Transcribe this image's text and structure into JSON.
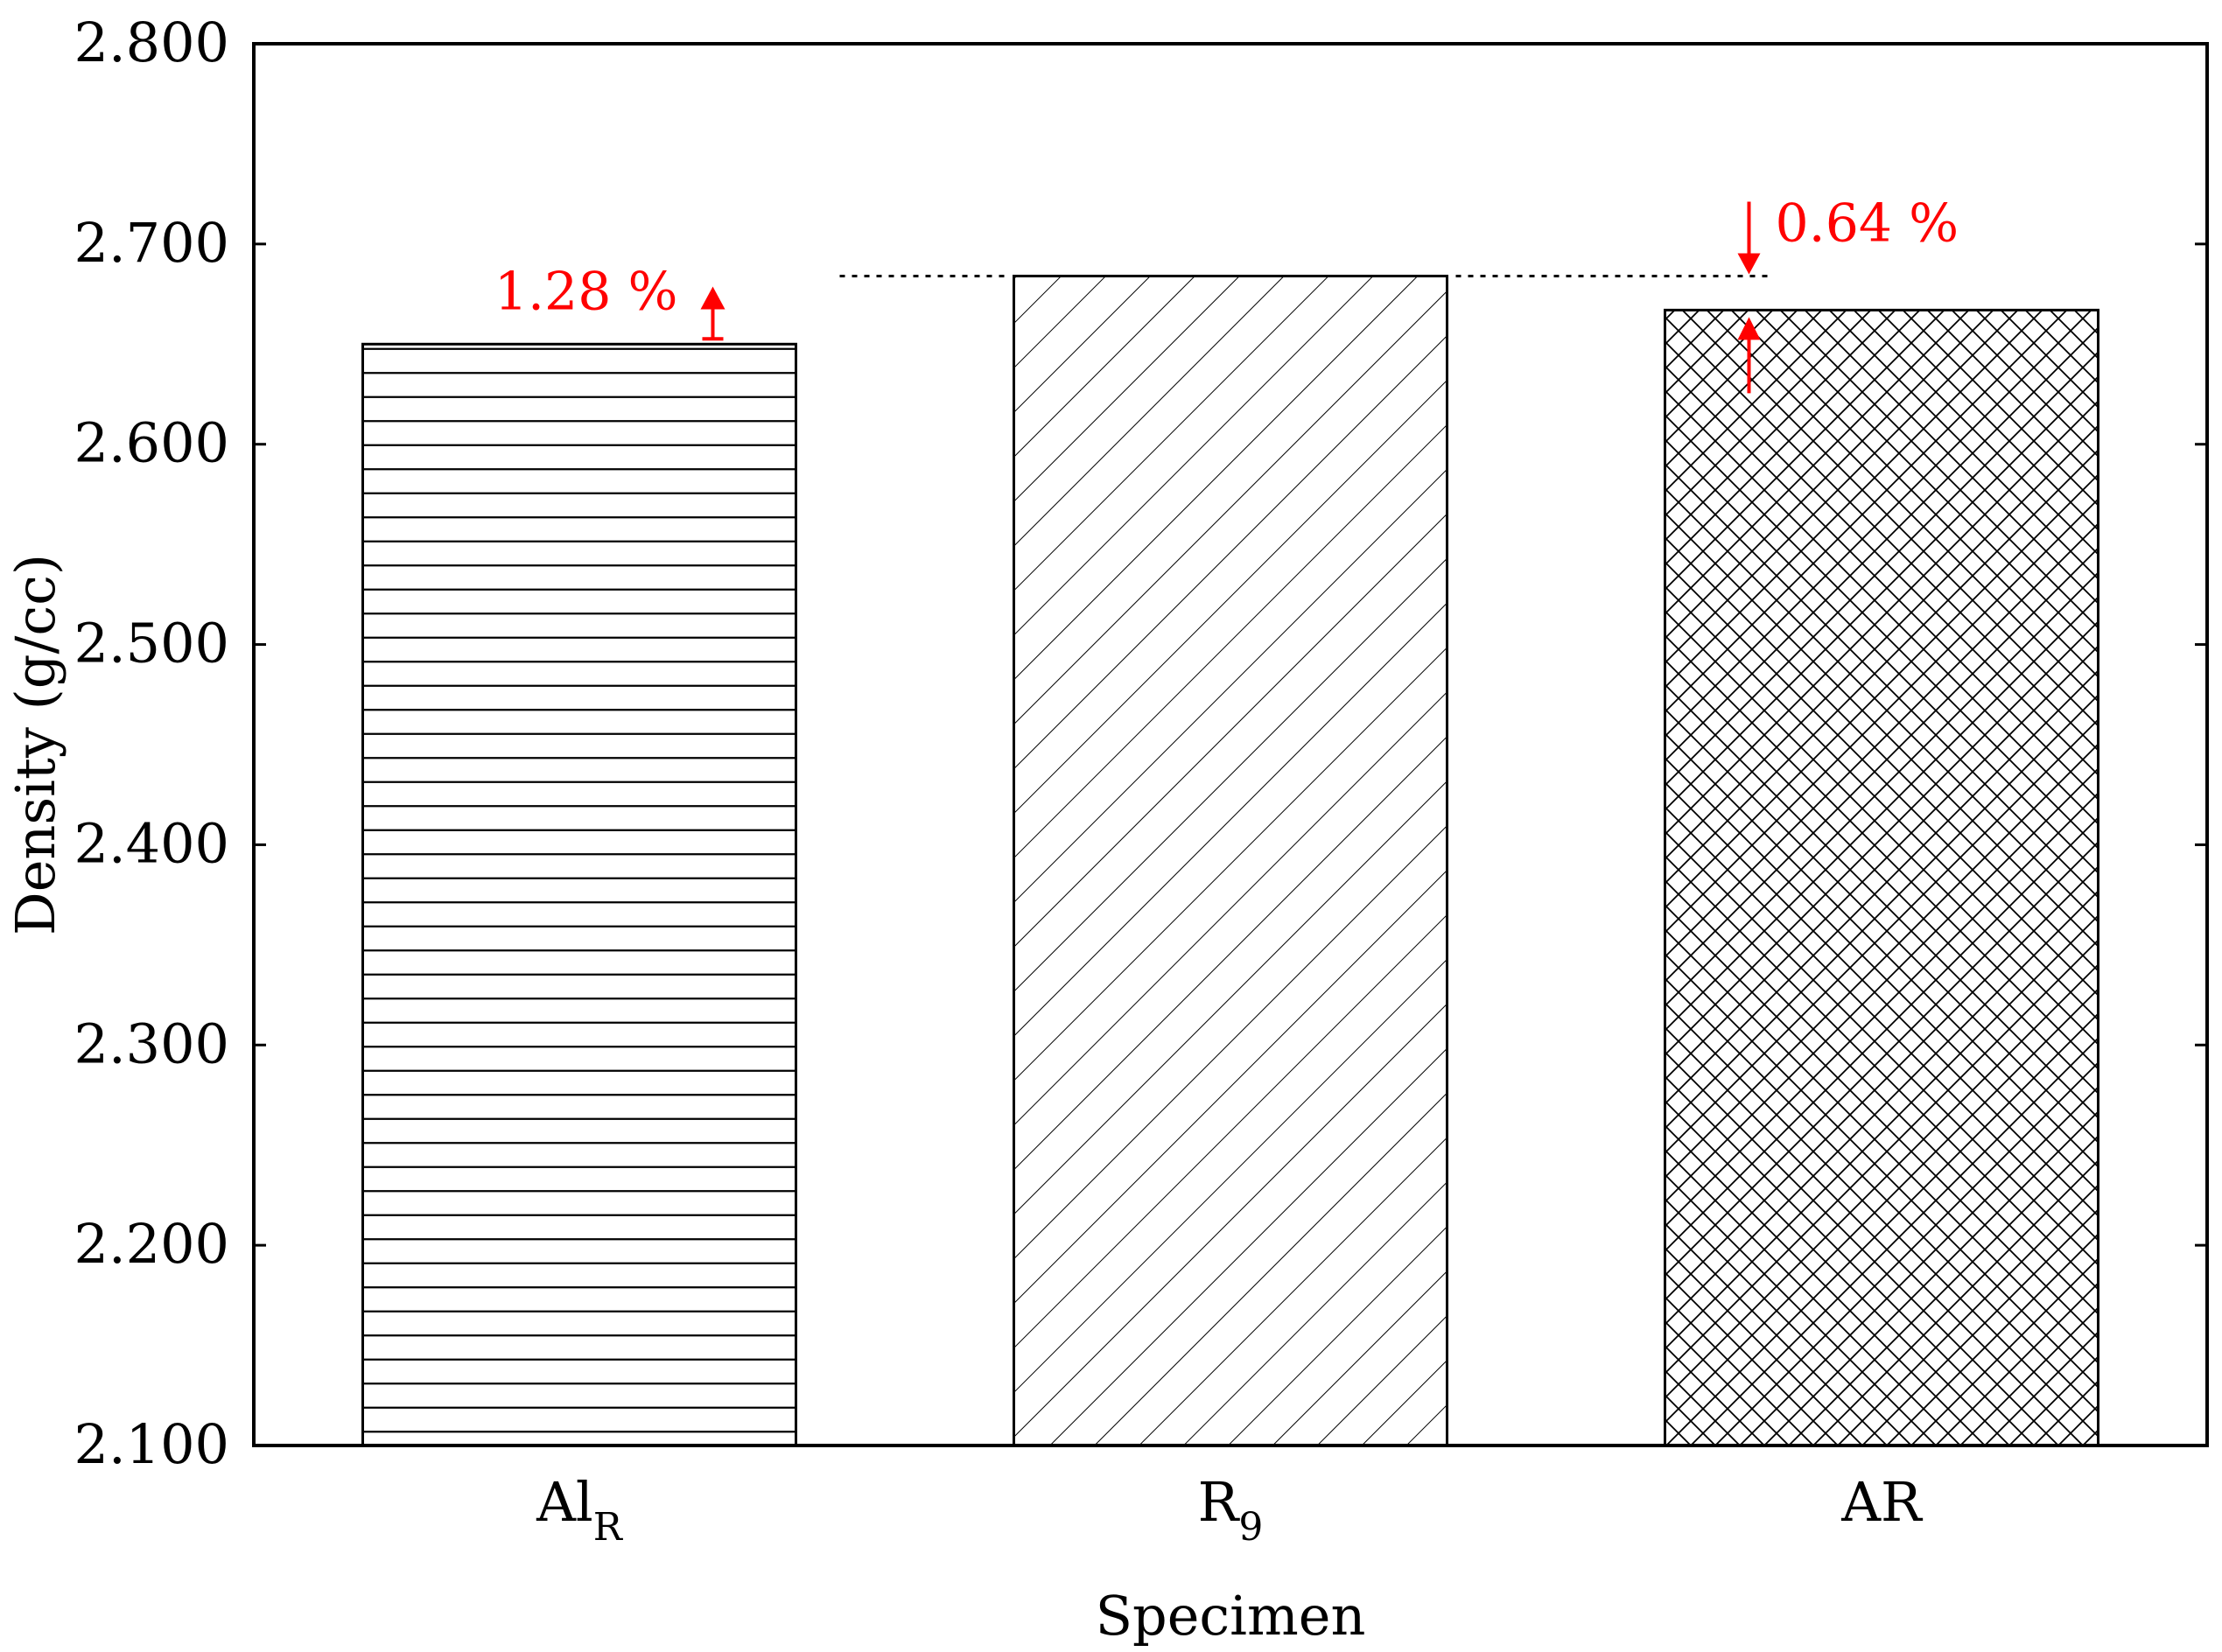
{
  "chart_data": {
    "type": "bar",
    "title": "",
    "xlabel": "Specimen",
    "ylabel": "Density (g/cc)",
    "ylim": [
      2.1,
      2.8
    ],
    "yticks": [
      "2.100",
      "2.200",
      "2.300",
      "2.400",
      "2.500",
      "2.600",
      "2.700",
      "2.800"
    ],
    "categories": [
      {
        "main": "Al",
        "sub": "R",
        "pattern": "horizontal-lines"
      },
      {
        "main": "R",
        "sub": "9",
        "pattern": "diagonal-lines"
      },
      {
        "main": "AR",
        "sub": "",
        "pattern": "crosshatch"
      }
    ],
    "values": [
      2.65,
      2.684,
      2.667
    ],
    "reference_value": 2.684,
    "grid": false,
    "annotations": [
      {
        "text": "1.28 %",
        "bar_index": 0,
        "direction": "up",
        "color": "#ff0000"
      },
      {
        "text": "0.64 %",
        "bar_index": 2,
        "direction": "down",
        "color": "#ff0000"
      }
    ]
  }
}
